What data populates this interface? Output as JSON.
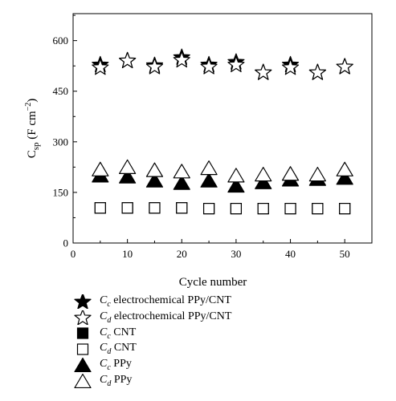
{
  "chart_data": {
    "type": "scatter",
    "xlabel": "Cycle number",
    "ylabel_main": "C",
    "ylabel_sub": "sp",
    "ylabel_unit_pre": " (F cm",
    "ylabel_unit_sup": "−2",
    "ylabel_unit_post": ")",
    "xlim": [
      0,
      55
    ],
    "ylim": [
      0,
      680
    ],
    "xticks": [
      0,
      10,
      20,
      30,
      40,
      50
    ],
    "yticks": [
      0,
      150,
      300,
      450,
      600
    ],
    "x": [
      5,
      10,
      15,
      20,
      25,
      30,
      35,
      40,
      45,
      50
    ],
    "series": [
      {
        "name": "electrochemical PPy/CNT",
        "sym": "C",
        "sub": "c",
        "marker": "star",
        "filled": true,
        "values": [
          528,
          540,
          526,
          550,
          528,
          536,
          505,
          528,
          505,
          522
        ]
      },
      {
        "name": "electrochemical PPy/CNT",
        "sym": "C",
        "sub": "d",
        "marker": "star",
        "filled": false,
        "values": [
          520,
          540,
          522,
          542,
          522,
          528,
          505,
          520,
          505,
          522
        ]
      },
      {
        "name": "CNT",
        "sym": "C",
        "sub": "c",
        "marker": "square",
        "filled": true,
        "values": [
          104,
          104,
          104,
          104,
          102,
          102,
          102,
          102,
          102,
          102
        ]
      },
      {
        "name": "CNT",
        "sym": "C",
        "sub": "d",
        "marker": "square",
        "filled": false,
        "values": [
          104,
          104,
          104,
          104,
          102,
          102,
          102,
          102,
          102,
          102
        ]
      },
      {
        "name": "PPy",
        "sym": "C",
        "sub": "c",
        "marker": "triangle",
        "filled": true,
        "values": [
          200,
          197,
          185,
          178,
          185,
          170,
          180,
          188,
          190,
          193
        ]
      },
      {
        "name": "PPy",
        "sym": "C",
        "sub": "d",
        "marker": "triangle",
        "filled": false,
        "values": [
          218,
          225,
          216,
          212,
          222,
          200,
          203,
          205,
          203,
          218
        ]
      }
    ]
  }
}
